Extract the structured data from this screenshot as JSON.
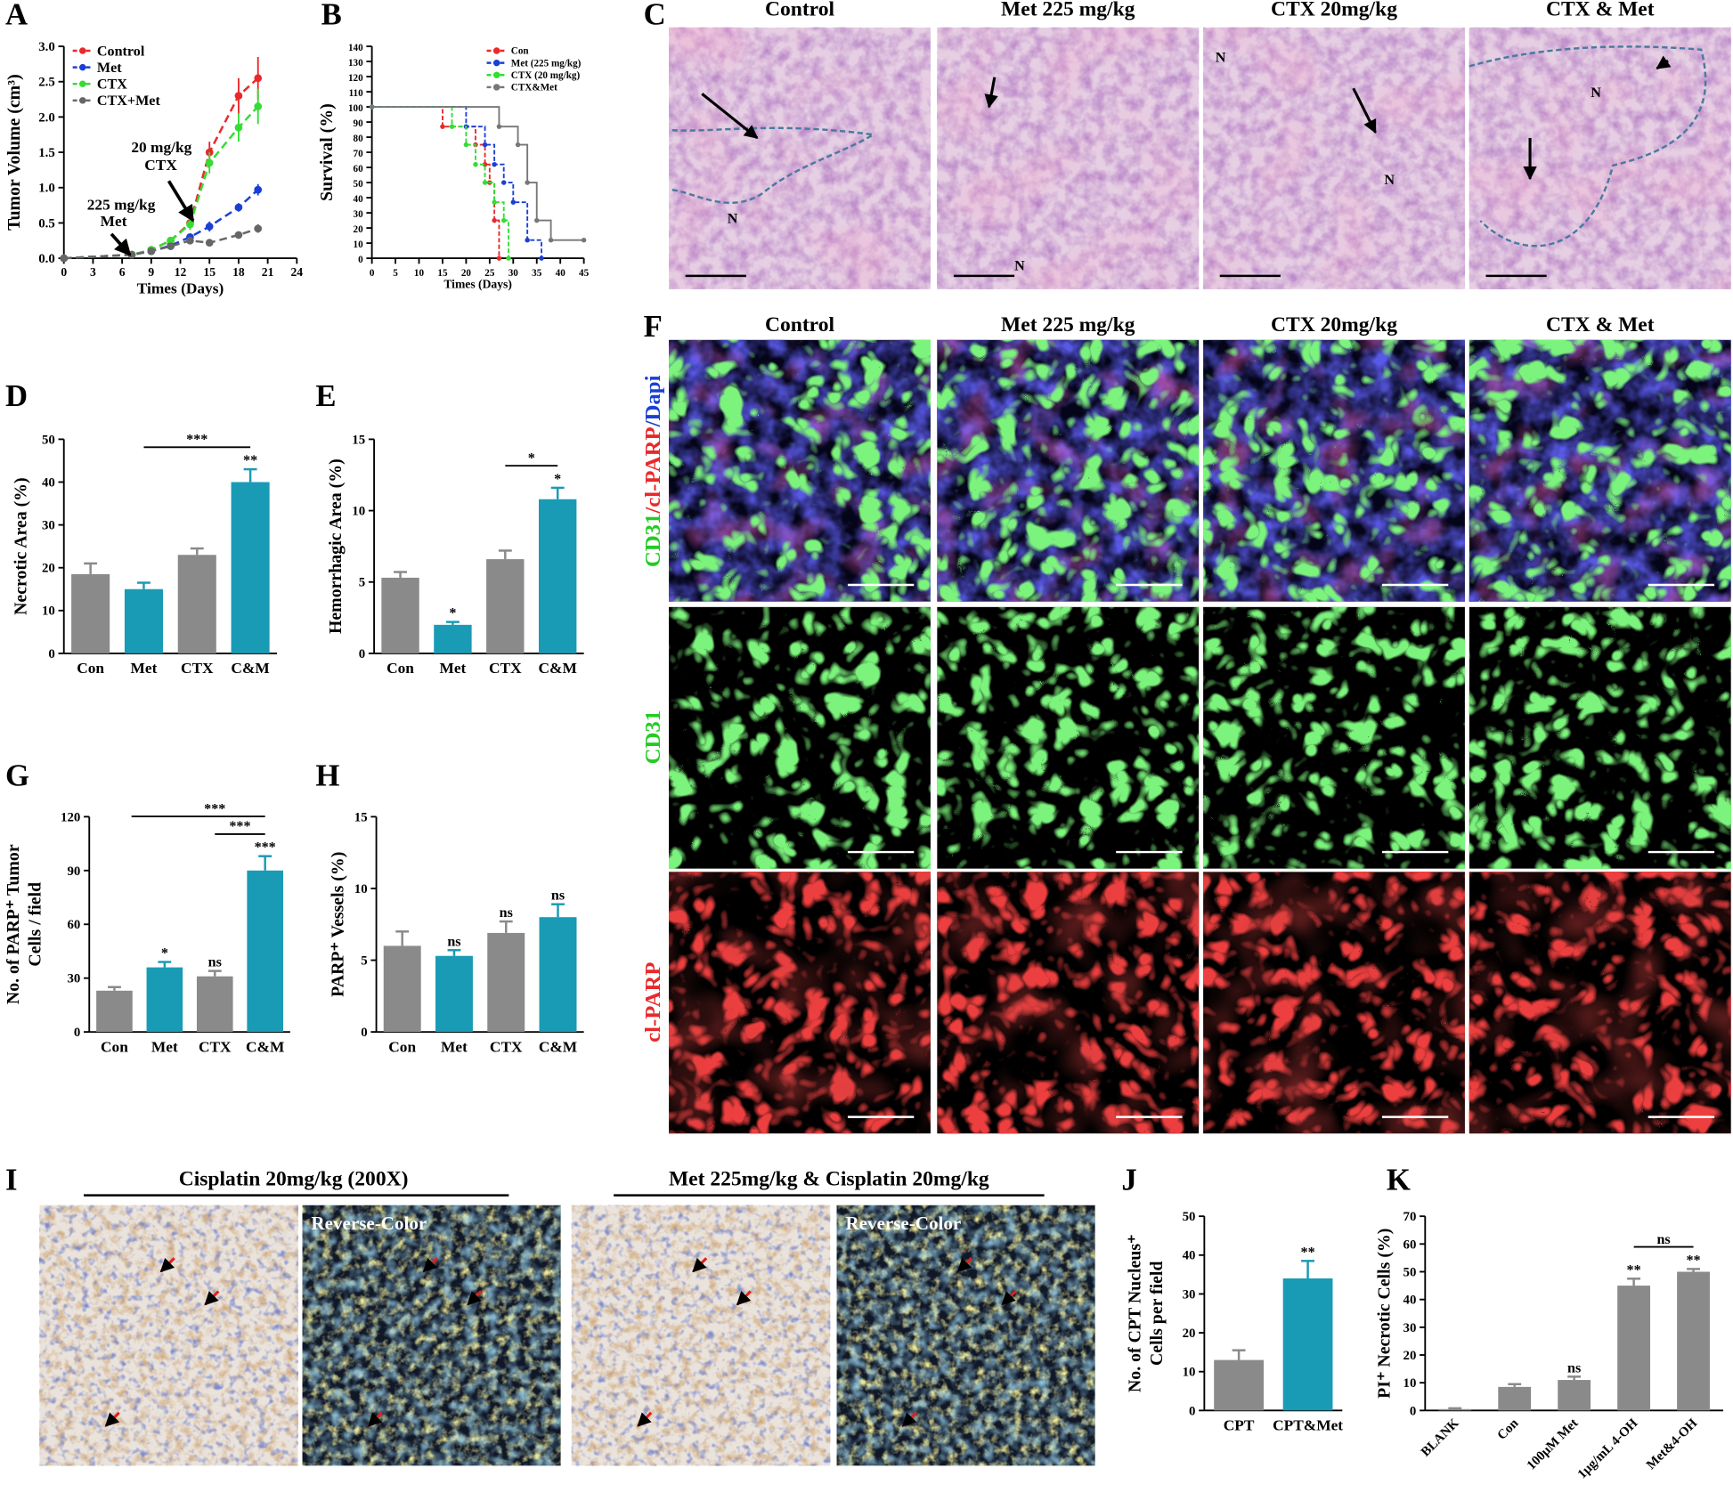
{
  "panel_letters": [
    "A",
    "B",
    "C",
    "D",
    "E",
    "F",
    "G",
    "H",
    "I",
    "J",
    "K"
  ],
  "chart_data": [
    {
      "type": "line",
      "xlabel": "Times (Days)",
      "ylabel": "Tumor Volume (cm³)",
      "x": [
        0,
        7,
        9,
        11,
        13,
        15,
        18,
        20
      ],
      "xlim": [
        0,
        24
      ],
      "xticks": [
        0,
        3,
        6,
        9,
        12,
        15,
        18,
        21,
        24
      ],
      "ylim": [
        0,
        3
      ],
      "yticks": [
        {
          "value": 0,
          "label": "0.0"
        },
        0.5,
        {
          "value": 1,
          "label": "1.0"
        },
        1.5,
        {
          "value": 2,
          "label": "2.0"
        },
        2.5,
        {
          "value": 3,
          "label": "3.0"
        }
      ],
      "legend": "upper-left",
      "series": [
        {
          "name": "Control",
          "color": "#e8292b",
          "values": [
            0,
            0.05,
            0.12,
            0.25,
            0.5,
            1.5,
            2.3,
            2.55
          ],
          "errors": [
            0,
            0.02,
            0.03,
            0.05,
            0.08,
            0.15,
            0.25,
            0.3
          ]
        },
        {
          "name": "Met",
          "color": "#1a3fd6",
          "values": [
            0,
            0.05,
            0.1,
            0.18,
            0.3,
            0.45,
            0.72,
            0.97
          ],
          "errors": [
            0,
            0.02,
            0.02,
            0.03,
            0.05,
            0.07,
            0.06,
            0.08
          ]
        },
        {
          "name": "CTX",
          "color": "#33dd33",
          "values": [
            0,
            0.05,
            0.12,
            0.25,
            0.48,
            1.35,
            1.85,
            2.15
          ],
          "errors": [
            0,
            0.02,
            0.03,
            0.05,
            0.08,
            0.15,
            0.2,
            0.25
          ]
        },
        {
          "name": "CTX+Met",
          "color": "#666666",
          "values": [
            0,
            0.05,
            0.1,
            0.17,
            0.25,
            0.22,
            0.33,
            0.42
          ],
          "errors": [
            0,
            0.02,
            0.02,
            0.03,
            0.04,
            0.03,
            0.05,
            0.06
          ]
        }
      ],
      "annotations": [
        [
          "225 mg/kg",
          "Met"
        ],
        [
          "20 mg/kg",
          "CTX"
        ]
      ]
    },
    {
      "type": "step",
      "xlabel": "Times (Days)",
      "ylabel": "Survival (%)",
      "xlim": [
        0,
        45
      ],
      "xticks": [
        0,
        5,
        10,
        15,
        20,
        25,
        30,
        35,
        40,
        45
      ],
      "ylim": [
        0,
        140
      ],
      "yticks": [
        0,
        10,
        20,
        30,
        40,
        50,
        60,
        70,
        80,
        90,
        100,
        110,
        120,
        130,
        140
      ],
      "legend": "upper-right",
      "series": [
        {
          "name": "Con",
          "color": "#e8292b",
          "x": [
            0,
            15,
            22,
            24,
            25,
            26,
            27
          ],
          "values": [
            100,
            87,
            75,
            62,
            50,
            25,
            0
          ]
        },
        {
          "name": "Met (225 mg/kg)",
          "color": "#1a3fd6",
          "x": [
            0,
            20,
            24,
            26,
            28,
            30,
            33,
            36
          ],
          "values": [
            100,
            87,
            75,
            62,
            50,
            37,
            12,
            0
          ]
        },
        {
          "name": "CTX (20 mg/kg)",
          "color": "#33dd33",
          "x": [
            0,
            17,
            20,
            22,
            24,
            26,
            28,
            29
          ],
          "values": [
            100,
            87,
            75,
            62,
            50,
            37,
            25,
            0
          ]
        },
        {
          "name": "CTX&Met",
          "color": "#777777",
          "x": [
            0,
            27,
            31,
            33,
            35,
            38,
            45
          ],
          "values": [
            100,
            87,
            75,
            50,
            25,
            12,
            12
          ]
        }
      ]
    },
    {
      "type": "bar",
      "ylabel": "Necrotic Area (%)",
      "categories": [
        "Con",
        "Met",
        "CTX",
        "C&M"
      ],
      "values": [
        18.5,
        15,
        23,
        40
      ],
      "errors": [
        2.5,
        1.5,
        1.5,
        3
      ],
      "colors": [
        "#8a8a8a",
        "#1a9bb5",
        "#8a8a8a",
        "#1a9bb5"
      ],
      "ylim": [
        0,
        50
      ],
      "yticks": [
        0,
        10,
        20,
        30,
        40,
        50
      ],
      "bar_labels": [
        null,
        null,
        null,
        "**"
      ],
      "brackets": [
        {
          "between": [
            "Met",
            "C&M"
          ],
          "label": "***"
        }
      ]
    },
    {
      "type": "bar",
      "ylabel": "Hemorrhagic Area (%)",
      "categories": [
        "Con",
        "Met",
        "CTX",
        "C&M"
      ],
      "values": [
        5.3,
        2.0,
        6.6,
        10.8
      ],
      "errors": [
        0.4,
        0.2,
        0.6,
        0.8
      ],
      "colors": [
        "#8a8a8a",
        "#1a9bb5",
        "#8a8a8a",
        "#1a9bb5"
      ],
      "ylim": [
        0,
        15
      ],
      "yticks": [
        0,
        5,
        10,
        15
      ],
      "bar_labels": [
        null,
        "*",
        null,
        "*"
      ],
      "brackets": [
        {
          "between": [
            "CTX",
            "C&M"
          ],
          "label": "*"
        }
      ]
    },
    {
      "type": "bar",
      "ylabel": [
        "No. of PARP⁺ Tumor",
        "Cells / field"
      ],
      "categories": [
        "Con",
        "Met",
        "CTX",
        "C&M"
      ],
      "values": [
        23,
        36,
        31,
        90
      ],
      "errors": [
        2,
        3,
        3,
        8
      ],
      "colors": [
        "#8a8a8a",
        "#1a9bb5",
        "#8a8a8a",
        "#1a9bb5"
      ],
      "ylim": [
        0,
        120
      ],
      "yticks": [
        0,
        30,
        60,
        90,
        120
      ],
      "bar_labels": [
        null,
        "*",
        "ns",
        "***"
      ],
      "brackets": [
        {
          "between": [
            "CTX",
            "C&M"
          ],
          "label": "***"
        },
        {
          "between": [
            "Met",
            "C&M"
          ],
          "label": "***"
        }
      ]
    },
    {
      "type": "bar",
      "ylabel": "PARP⁺ Vessels (%)",
      "categories": [
        "Con",
        "Met",
        "CTX",
        "C&M"
      ],
      "values": [
        6,
        5.3,
        6.9,
        8
      ],
      "errors": [
        1,
        0.4,
        0.8,
        0.9
      ],
      "colors": [
        "#8a8a8a",
        "#1a9bb5",
        "#8a8a8a",
        "#1a9bb5"
      ],
      "ylim": [
        0,
        15
      ],
      "yticks": [
        0,
        5,
        10,
        15
      ],
      "bar_labels": [
        null,
        "ns",
        "ns",
        "ns"
      ]
    },
    {
      "type": "bar",
      "ylabel": [
        "No. of CPT Nucleus⁺",
        "Cells per field"
      ],
      "categories": [
        "CPT",
        "CPT&Met"
      ],
      "values": [
        13,
        34
      ],
      "errors": [
        2.5,
        4.5
      ],
      "colors": [
        "#8a8a8a",
        "#1a9bb5"
      ],
      "ylim": [
        0,
        50
      ],
      "yticks": [
        0,
        10,
        20,
        30,
        40,
        50
      ],
      "bar_labels": [
        null,
        "**"
      ]
    },
    {
      "type": "bar",
      "ylabel": "PI⁺ Necrotic Cells (%)",
      "categories": [
        "BLANK",
        "Con",
        "100μM Met",
        "1μg/mL 4-OH",
        "Met&4-OH"
      ],
      "values": [
        0.5,
        8.5,
        11,
        45,
        50
      ],
      "errors": [
        0.3,
        1,
        1.2,
        2.5,
        1
      ],
      "colors": [
        "#8a8a8a",
        "#8a8a8a",
        "#8a8a8a",
        "#8a8a8a",
        "#8a8a8a"
      ],
      "ylim": [
        0,
        70
      ],
      "yticks": [
        0,
        10,
        20,
        30,
        40,
        50,
        60,
        70
      ],
      "rotate_labels": true,
      "bar_labels": [
        null,
        null,
        "ns",
        "**",
        "**"
      ],
      "brackets": [
        {
          "between": [
            "1μg/mL 4-OH",
            "Met&4-OH"
          ],
          "label": "ns"
        }
      ]
    }
  ],
  "images": {
    "C": {
      "columns": [
        "Control",
        "Met 225 mg/kg",
        "CTX 20mg/kg",
        "CTX & Met"
      ],
      "necrosis_labels": [
        "N",
        "N",
        "N",
        "N",
        "N"
      ]
    },
    "F": {
      "columns": [
        "Control",
        "Met 225 mg/kg",
        "CTX 20mg/kg",
        "CTX & Met"
      ],
      "rows": [
        [
          {
            "text": "CD31",
            "color": "#22cc22"
          },
          {
            "text": "/cl-PARP",
            "color": "#e8292b"
          },
          {
            "text": "/Dapi",
            "color": "#1a3fd6"
          }
        ],
        [
          {
            "text": "CD31",
            "color": "#22cc22"
          }
        ],
        [
          {
            "text": "cl-PARP",
            "color": "#e8292b"
          }
        ]
      ]
    },
    "I": {
      "groups": [
        "Cisplatin 20mg/kg (200X)",
        "Met 225mg/kg & Cisplatin 20mg/kg"
      ],
      "overlay": "Reverse-Color"
    }
  }
}
